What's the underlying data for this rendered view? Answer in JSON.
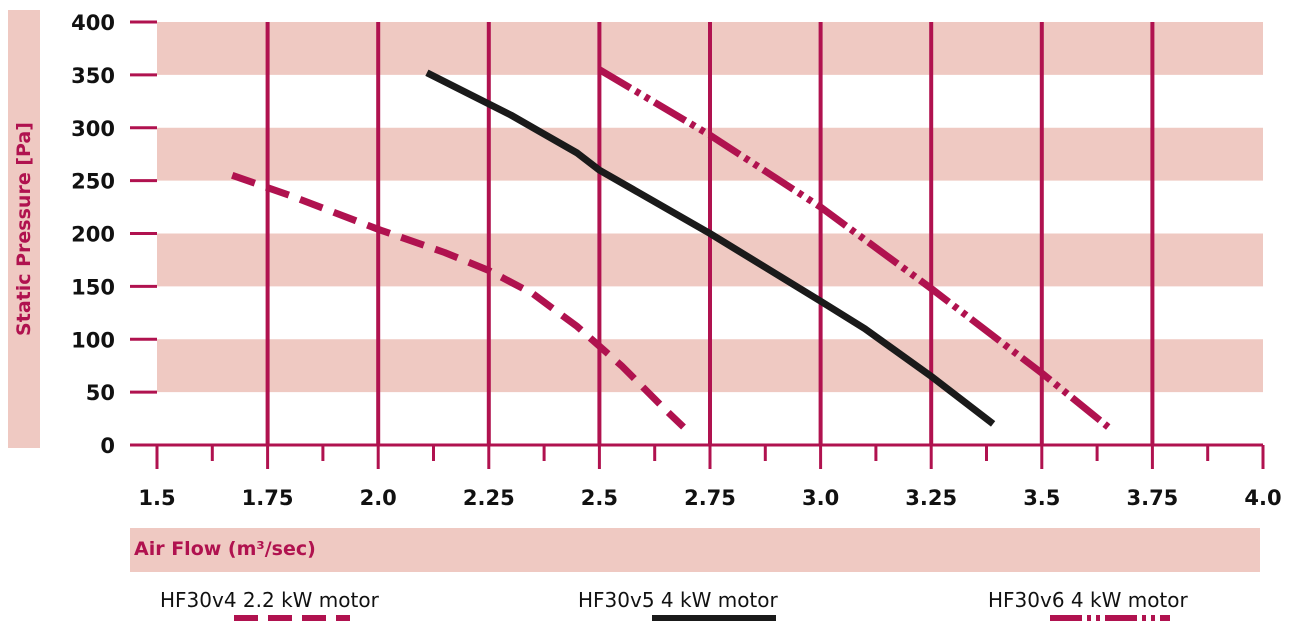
{
  "chart_data": {
    "type": "line",
    "xlabel": "Air Flow (m³/sec)",
    "ylabel": "Static Pressure [Pa]",
    "xlim": [
      1.5,
      4.0
    ],
    "ylim": [
      0,
      400
    ],
    "x_ticks": [
      "1.5",
      "1.75",
      "2.0",
      "2.25",
      "2.5",
      "2.75",
      "3.0",
      "3.25",
      "3.5",
      "3.75",
      "4.0"
    ],
    "y_ticks": [
      "0",
      "50",
      "100",
      "150",
      "200",
      "250",
      "300",
      "350",
      "400"
    ],
    "grid": "vertical lines with horizontal shaded bands",
    "legend_position": "bottom",
    "colors": {
      "accent": "#b0124f",
      "band": "#efc9c2",
      "black": "#1a1a1a"
    },
    "series": [
      {
        "name": "HF30v4 2.2 kW motor",
        "style": "dashed",
        "color": "#b0124f",
        "points": [
          [
            1.67,
            255
          ],
          [
            1.8,
            236
          ],
          [
            2.0,
            204
          ],
          [
            2.15,
            182
          ],
          [
            2.25,
            165
          ],
          [
            2.35,
            143
          ],
          [
            2.45,
            112
          ],
          [
            2.55,
            75
          ],
          [
            2.65,
            33
          ],
          [
            2.69,
            17
          ]
        ]
      },
      {
        "name": "HF30v5 4 kW motor",
        "style": "solid",
        "color": "#1a1a1a",
        "points": [
          [
            2.11,
            352
          ],
          [
            2.3,
            312
          ],
          [
            2.45,
            276
          ],
          [
            2.5,
            260
          ],
          [
            2.75,
            200
          ],
          [
            3.0,
            136
          ],
          [
            3.1,
            110
          ],
          [
            3.25,
            65
          ],
          [
            3.39,
            20
          ]
        ]
      },
      {
        "name": "HF30v6 4 kW motor",
        "style": "dash-dot-dot",
        "color": "#b0124f",
        "points": [
          [
            2.5,
            355
          ],
          [
            2.75,
            293
          ],
          [
            3.0,
            225
          ],
          [
            3.25,
            148
          ],
          [
            3.5,
            68
          ],
          [
            3.65,
            17
          ]
        ]
      }
    ]
  }
}
